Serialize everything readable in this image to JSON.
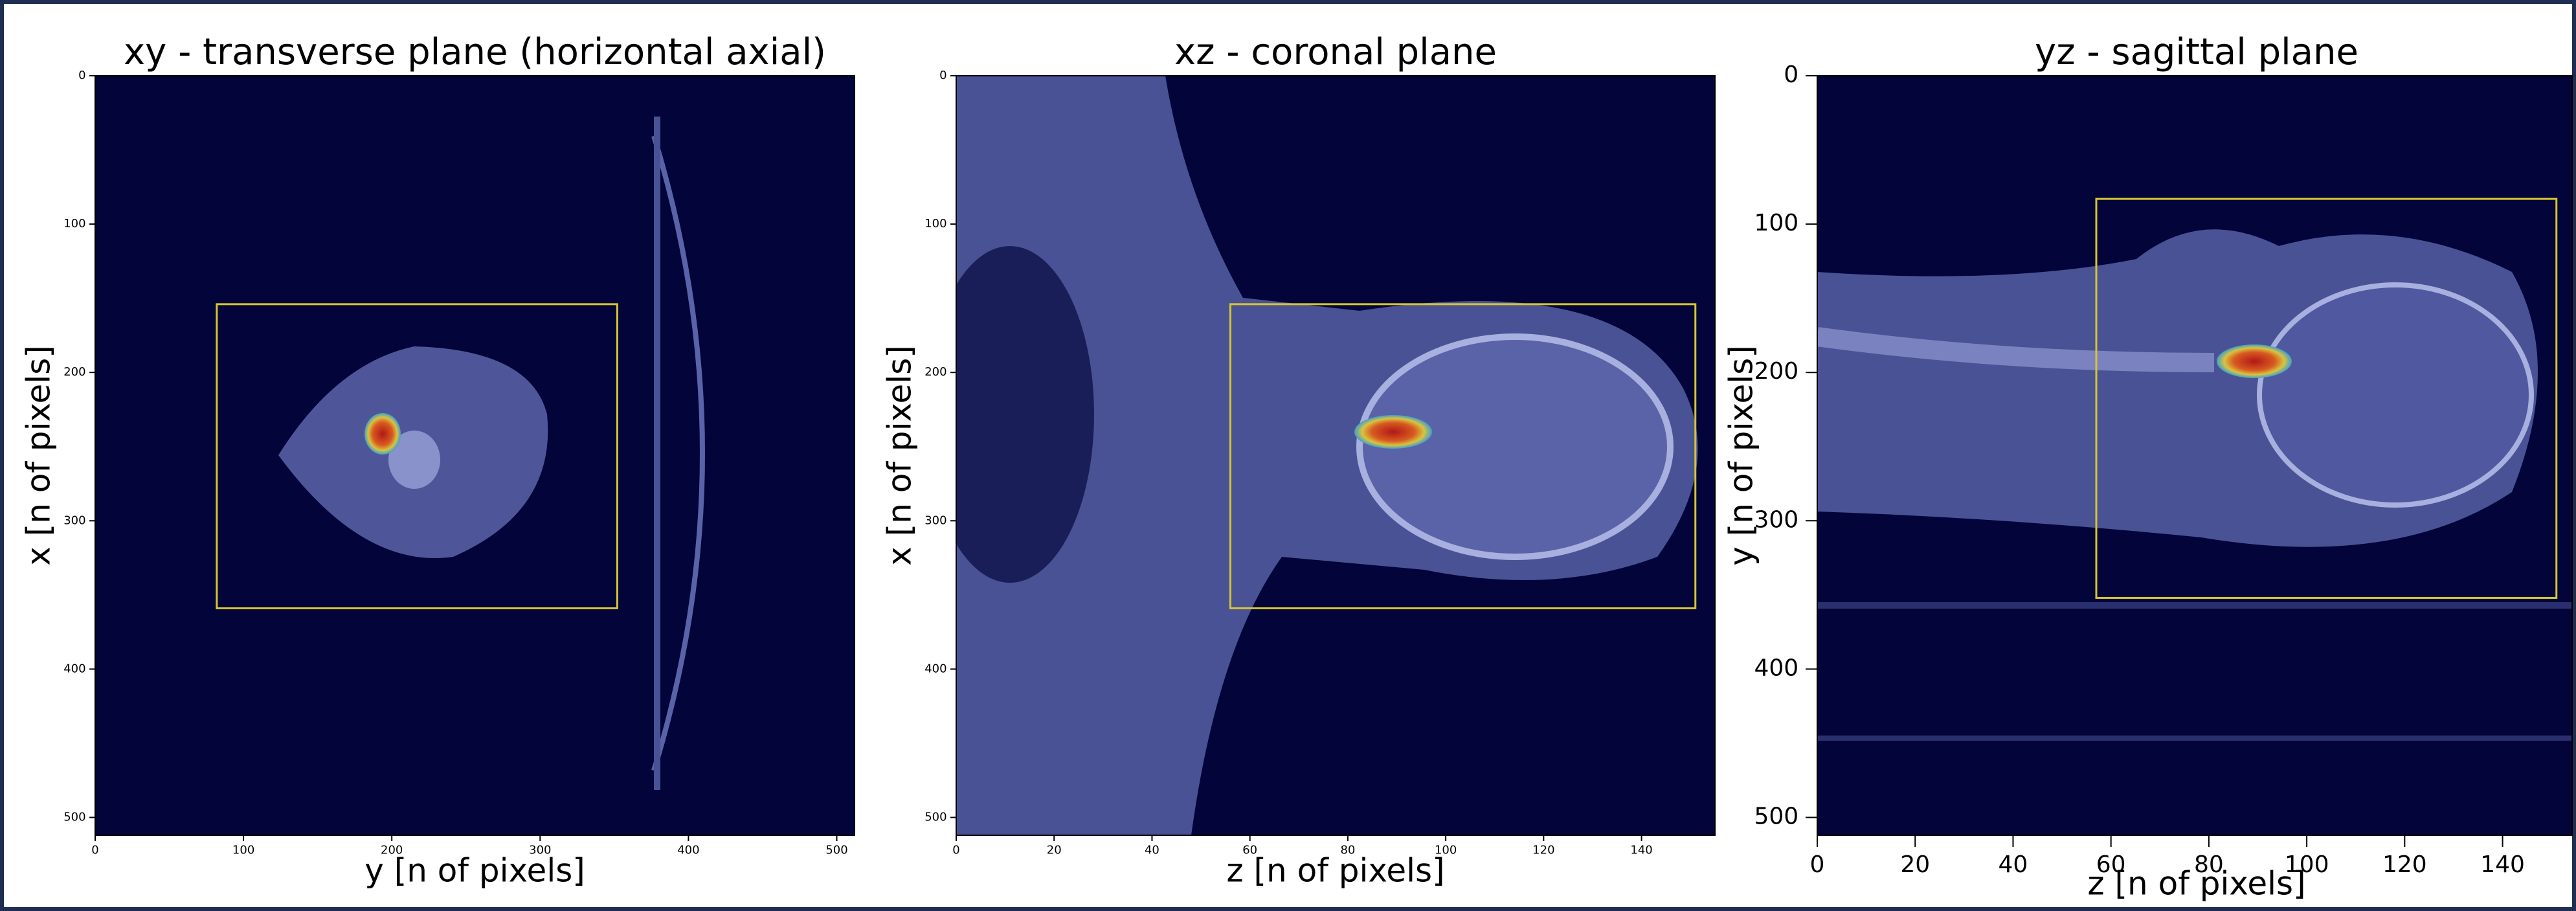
{
  "chart_data": [
    {
      "type": "image",
      "title": "xy - transverse plane (horizontal axial)",
      "xlabel": "y [n of pixels]",
      "ylabel": "x [n of pixels]",
      "xlim": [
        0,
        512
      ],
      "ylim": [
        512,
        0
      ],
      "xticks": [
        0,
        100,
        200,
        300,
        400,
        500
      ],
      "yticks": [
        0,
        100,
        200,
        300,
        400,
        500
      ],
      "box": {
        "x": [
          82,
          352
        ],
        "y": [
          154,
          359
        ]
      },
      "box_color": "#d4c630"
    },
    {
      "type": "image",
      "title": "xz - coronal plane",
      "xlabel": "z [n of pixels]",
      "ylabel": "x [n of pixels]",
      "xlim": [
        0,
        155
      ],
      "ylim": [
        512,
        0
      ],
      "xticks": [
        0,
        20,
        40,
        60,
        80,
        100,
        120,
        140
      ],
      "yticks": [
        0,
        100,
        200,
        300,
        400,
        500
      ],
      "box": {
        "x": [
          56,
          151
        ],
        "y": [
          154,
          359
        ]
      },
      "box_color": "#d4c630"
    },
    {
      "type": "image",
      "title": "yz - sagittal plane",
      "xlabel": "z [n of pixels]",
      "ylabel": "y [n of pixels]",
      "xlim": [
        0,
        155
      ],
      "ylim": [
        512,
        0
      ],
      "xticks": [
        0,
        20,
        40,
        60,
        80,
        100,
        120,
        140
      ],
      "yticks": [
        0,
        100,
        200,
        300,
        400,
        500
      ],
      "box": {
        "x": [
          57,
          151
        ],
        "y": [
          83,
          352
        ]
      },
      "box_color": "#d4c630"
    }
  ]
}
